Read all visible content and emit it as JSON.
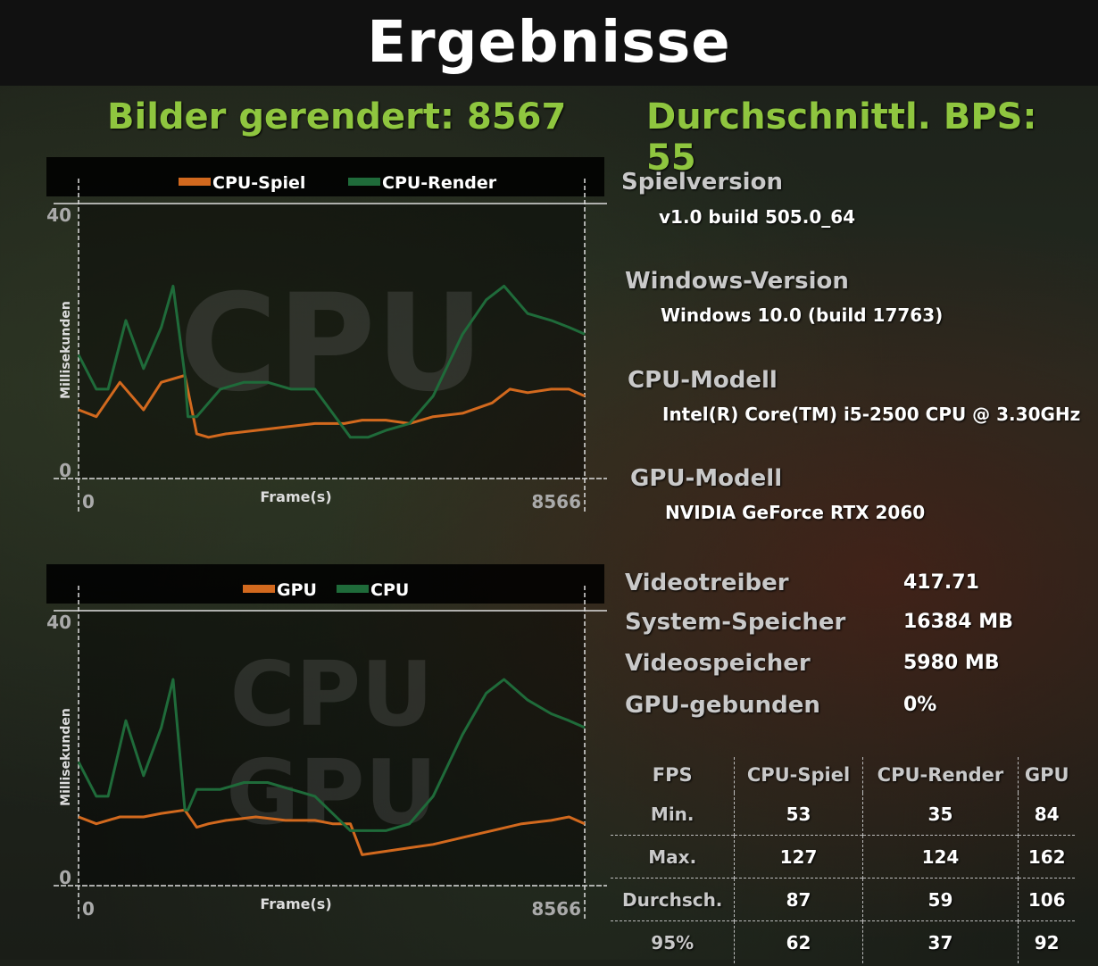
{
  "header": {
    "title": "Ergebnisse"
  },
  "summary": {
    "frames_rendered": "Bilder gerendert: 8567",
    "avg_fps": "Durchschnittl. BPS: 55"
  },
  "info": {
    "game_version_label": "Spielversion",
    "game_version_value": "v1.0 build 505.0_64",
    "windows_label": "Windows-Version",
    "windows_value": "Windows 10.0 (build 17763)",
    "cpu_label": "CPU-Modell",
    "cpu_value": "Intel(R) Core(TM) i5-2500 CPU @ 3.30GHz",
    "gpu_label": "GPU-Modell",
    "gpu_value": "NVIDIA GeForce RTX 2060"
  },
  "system": [
    {
      "label": "Videotreiber",
      "value": "417.71"
    },
    {
      "label": "System-Speicher",
      "value": "16384 MB"
    },
    {
      "label": "Videospeicher",
      "value": "5980 MB"
    },
    {
      "label": "GPU-gebunden",
      "value": "0%"
    }
  ],
  "fps_table": {
    "headers": [
      "FPS",
      "CPU-Spiel",
      "CPU-Render",
      "GPU"
    ],
    "rows": [
      [
        "Min.",
        "53",
        "35",
        "84"
      ],
      [
        "Max.",
        "127",
        "124",
        "162"
      ],
      [
        "Durchsch.",
        "87",
        "59",
        "106"
      ],
      [
        "95%",
        "62",
        "37",
        "92"
      ]
    ]
  },
  "colors": {
    "orange": "#d2691e",
    "green": "#1f6b3a",
    "accent": "#8fc63f"
  },
  "chart_data": [
    {
      "type": "line",
      "watermark": "CPU",
      "xlabel": "Frame(s)",
      "ylabel": "Millisekunden",
      "xlim": [
        0,
        8566
      ],
      "ylim": [
        0,
        40
      ],
      "x_tick_labels": [
        "0",
        "8566"
      ],
      "y_tick_labels": [
        "0",
        "40"
      ],
      "legend_position": "top-center",
      "series": [
        {
          "name": "CPU-Spiel",
          "color": "#d2691e",
          "x": [
            0,
            300,
            700,
            1100,
            1400,
            1800,
            2000,
            2200,
            2500,
            3000,
            3500,
            4000,
            4500,
            4800,
            5200,
            5600,
            6000,
            6500,
            7000,
            7300,
            7600,
            8000,
            8300,
            8566
          ],
          "y": [
            10,
            9,
            14,
            10,
            14,
            15,
            6.5,
            6,
            6.5,
            7,
            7.5,
            8,
            8,
            8.5,
            8.5,
            8,
            9,
            9.5,
            11,
            13,
            12.5,
            13,
            13,
            12
          ]
        },
        {
          "name": "CPU-Render",
          "color": "#1f6b3a",
          "x": [
            0,
            300,
            500,
            800,
            1100,
            1400,
            1600,
            1800,
            1850,
            2000,
            2400,
            2800,
            3200,
            3600,
            4000,
            4600,
            4900,
            5200,
            5600,
            6000,
            6500,
            6900,
            7200,
            7600,
            8000,
            8300,
            8566
          ],
          "y": [
            18,
            13,
            13,
            23,
            16,
            22,
            28,
            15,
            9,
            9,
            13,
            14,
            14,
            13,
            13,
            6,
            6,
            7,
            8,
            12,
            21,
            26,
            28,
            24,
            23,
            22,
            21
          ]
        }
      ]
    },
    {
      "type": "line",
      "watermark": "CPU GPU",
      "xlabel": "Frame(s)",
      "ylabel": "Millisekunden",
      "xlim": [
        0,
        8566
      ],
      "ylim": [
        0,
        40
      ],
      "x_tick_labels": [
        "0",
        "8566"
      ],
      "y_tick_labels": [
        "0",
        "40"
      ],
      "legend_position": "top-center",
      "series": [
        {
          "name": "GPU",
          "color": "#d2691e",
          "x": [
            0,
            300,
            700,
            1100,
            1400,
            1800,
            2000,
            2200,
            2500,
            3000,
            3500,
            4000,
            4300,
            4600,
            4800,
            5200,
            5600,
            6000,
            6500,
            7000,
            7500,
            8000,
            8300,
            8566
          ],
          "y": [
            10,
            9,
            10,
            10,
            10.5,
            11,
            8.5,
            9,
            9.5,
            10,
            9.5,
            9.5,
            9,
            9,
            4.5,
            5,
            5.5,
            6,
            7,
            8,
            9,
            9.5,
            10,
            9
          ]
        },
        {
          "name": "CPU",
          "color": "#1f6b3a",
          "x": [
            0,
            300,
            500,
            800,
            1100,
            1400,
            1600,
            1800,
            1850,
            2000,
            2400,
            2800,
            3200,
            3600,
            4000,
            4600,
            4900,
            5200,
            5600,
            6000,
            6500,
            6900,
            7200,
            7600,
            8000,
            8300,
            8566
          ],
          "y": [
            18,
            13,
            13,
            24,
            16,
            23,
            30,
            11,
            11,
            14,
            14,
            15,
            15,
            14,
            13,
            8,
            8,
            8,
            9,
            13,
            22,
            28,
            30,
            27,
            25,
            24,
            23
          ]
        }
      ]
    }
  ]
}
